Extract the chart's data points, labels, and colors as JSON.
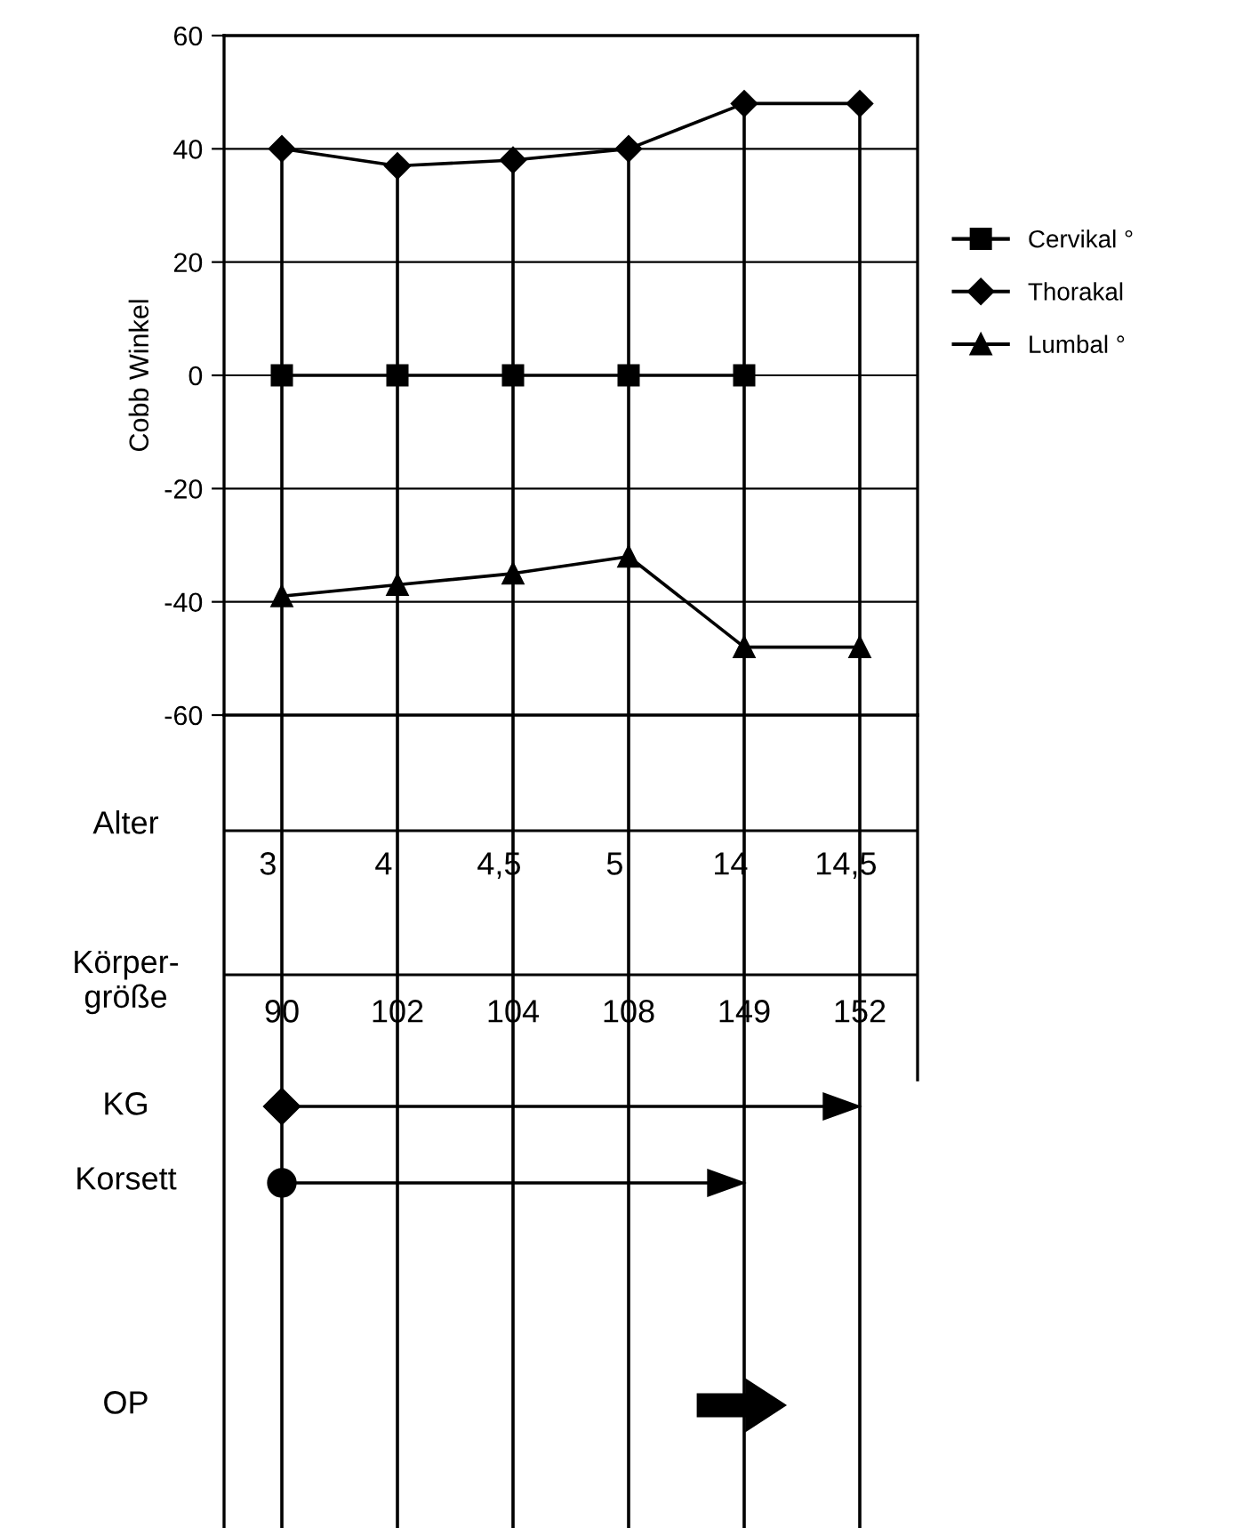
{
  "chart_data": {
    "type": "line",
    "ylabel": "Cobb Winkel",
    "categories": [
      "3",
      "4",
      "4,5",
      "5",
      "14",
      "14,5"
    ],
    "series": [
      {
        "name": "Cervikal °",
        "color": "#000000",
        "marker": "square",
        "values": [
          0,
          0,
          0,
          0,
          0,
          null
        ]
      },
      {
        "name": "Thorakal",
        "color": "#000000",
        "marker": "diamond",
        "values": [
          40,
          37,
          38,
          40,
          48,
          48
        ]
      },
      {
        "name": "Lumbal °",
        "color": "#000000",
        "marker": "triangle",
        "values": [
          -39,
          -37,
          -35,
          -32,
          -48,
          -48
        ]
      }
    ],
    "ylim": [
      -60,
      60
    ],
    "yticks": [
      -60,
      -40,
      -20,
      0,
      20,
      40,
      60
    ],
    "grid": "y",
    "legend": "right",
    "line_style": "solid",
    "annotations": [
      "Alter",
      "Körper-\ngröße",
      "KG",
      "Korsett",
      "OP",
      "90",
      "102",
      "104",
      "108",
      "149",
      "152"
    ]
  }
}
